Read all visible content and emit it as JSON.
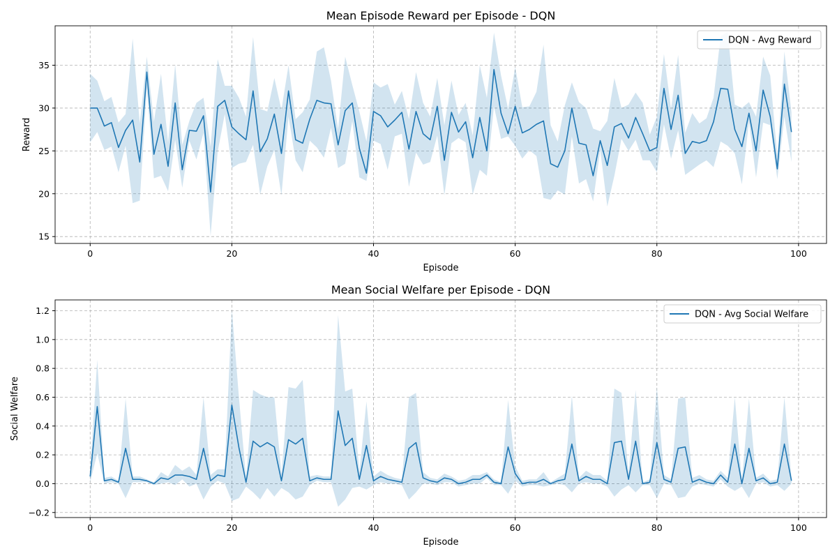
{
  "chart_data": [
    {
      "type": "line",
      "title": "Mean Episode Reward per Episode - DQN",
      "xlabel": "Episode",
      "ylabel": "Reward",
      "xlim": [
        -4.95,
        103.95
      ],
      "ylim": [
        14.2,
        39.6
      ],
      "xticks": [
        0,
        20,
        40,
        60,
        80,
        100
      ],
      "yticks": [
        15,
        20,
        25,
        30,
        35
      ],
      "xtick_labels": [
        "0",
        "20",
        "40",
        "60",
        "80",
        "100"
      ],
      "ytick_labels": [
        "15",
        "20",
        "25",
        "30",
        "35"
      ],
      "grid": true,
      "legend_position": "upper right",
      "line_color": "#1f77b4",
      "band_color": "#1f77b4",
      "series": [
        {
          "name": "DQN - Avg Reward",
          "x": [
            0,
            1,
            2,
            3,
            4,
            5,
            6,
            7,
            8,
            9,
            10,
            11,
            12,
            13,
            14,
            15,
            16,
            17,
            18,
            19,
            20,
            21,
            22,
            23,
            24,
            25,
            26,
            27,
            28,
            29,
            30,
            31,
            32,
            33,
            34,
            35,
            36,
            37,
            38,
            39,
            40,
            41,
            42,
            43,
            44,
            45,
            46,
            47,
            48,
            49,
            50,
            51,
            52,
            53,
            54,
            55,
            56,
            57,
            58,
            59,
            60,
            61,
            62,
            63,
            64,
            65,
            66,
            67,
            68,
            69,
            70,
            71,
            72,
            73,
            74,
            75,
            76,
            77,
            78,
            79,
            80,
            81,
            82,
            83,
            84,
            85,
            86,
            87,
            88,
            89,
            90,
            91,
            92,
            93,
            94,
            95,
            96,
            97,
            98,
            99
          ],
          "values": [
            30.0,
            30.0,
            27.9,
            28.3,
            25.4,
            27.4,
            28.6,
            23.7,
            34.2,
            24.6,
            28.1,
            23.2,
            30.6,
            22.8,
            27.4,
            27.3,
            29.1,
            20.2,
            30.2,
            30.9,
            27.8,
            27.0,
            26.3,
            32.0,
            24.9,
            26.4,
            29.3,
            24.7,
            32.0,
            26.3,
            25.9,
            28.7,
            30.9,
            30.6,
            30.5,
            25.7,
            29.7,
            30.6,
            25.3,
            22.4,
            29.6,
            29.1,
            27.8,
            28.6,
            29.5,
            25.2,
            29.6,
            27.0,
            26.3,
            30.2,
            23.9,
            29.5,
            27.2,
            28.4,
            24.2,
            28.9,
            25.0,
            34.5,
            29.4,
            27.0,
            30.2,
            27.1,
            27.5,
            28.1,
            28.5,
            23.5,
            23.1,
            25.0,
            30.0,
            25.9,
            25.7,
            22.1,
            26.2,
            23.3,
            27.8,
            28.2,
            26.5,
            28.9,
            27.0,
            25.0,
            25.4,
            32.3,
            27.5,
            31.5,
            24.7,
            26.1,
            25.9,
            26.2,
            28.4,
            32.3,
            32.2,
            27.5,
            25.5,
            29.4,
            25.0,
            32.1,
            29.0,
            22.9,
            32.8,
            27.2
          ],
          "upper": [
            34.0,
            33.2,
            30.8,
            31.3,
            28.3,
            29.3,
            38.1,
            28.2,
            36.0,
            28.4,
            34.0,
            26.0,
            35.1,
            25.7,
            28.5,
            30.6,
            31.2,
            25.5,
            35.7,
            32.6,
            32.6,
            31.2,
            29.0,
            38.3,
            29.9,
            29.6,
            33.5,
            29.8,
            35.0,
            28.7,
            29.5,
            31.0,
            36.6,
            37.1,
            33.2,
            27.5,
            36.0,
            32.7,
            29.6,
            26.1,
            33.0,
            32.4,
            32.8,
            30.4,
            32.0,
            28.7,
            34.2,
            30.6,
            29.0,
            33.5,
            28.0,
            33.2,
            29.2,
            30.6,
            26.8,
            35.0,
            31.2,
            38.8,
            33.8,
            29.9,
            34.8,
            30.1,
            30.2,
            31.9,
            37.4,
            28.0,
            26.1,
            30.3,
            33.0,
            30.7,
            30.0,
            27.6,
            27.3,
            28.5,
            33.5,
            30.0,
            30.4,
            31.8,
            30.6,
            26.9,
            29.0,
            36.3,
            29.9,
            36.2,
            27.1,
            29.4,
            28.2,
            28.8,
            31.2,
            38.4,
            38.9,
            30.4,
            30.0,
            30.7,
            29.0,
            36.0,
            33.8,
            24.4,
            36.6,
            29.5
          ],
          "lower": [
            26.0,
            27.2,
            25.1,
            25.5,
            22.5,
            25.6,
            18.9,
            19.2,
            32.3,
            21.8,
            22.1,
            20.3,
            26.3,
            20.7,
            26.2,
            24.0,
            27.1,
            15.1,
            24.9,
            29.3,
            23.0,
            23.5,
            23.7,
            25.7,
            19.9,
            23.2,
            25.1,
            19.8,
            29.0,
            23.9,
            22.5,
            26.2,
            25.4,
            24.2,
            27.7,
            23.0,
            23.5,
            28.5,
            21.9,
            21.5,
            26.2,
            25.8,
            22.8,
            26.7,
            27.0,
            20.8,
            24.8,
            23.4,
            23.7,
            26.8,
            19.8,
            25.9,
            26.5,
            26.0,
            19.9,
            22.8,
            22.1,
            30.2,
            26.4,
            26.7,
            25.6,
            24.1,
            25.1,
            24.4,
            19.5,
            19.3,
            20.4,
            19.9,
            26.7,
            21.2,
            21.7,
            19.1,
            25.1,
            18.5,
            22.1,
            26.4,
            25.0,
            26.3,
            23.9,
            23.9,
            22.5,
            28.1,
            24.1,
            27.4,
            22.2,
            22.8,
            23.4,
            23.9,
            23.1,
            26.1,
            25.6,
            24.7,
            21.1,
            28.4,
            21.9,
            28.3,
            28.0,
            21.7,
            29.0,
            23.7
          ]
        }
      ]
    },
    {
      "type": "line",
      "title": "Mean Social Welfare per Episode - DQN",
      "xlabel": "Episode",
      "ylabel": "Social Welfare",
      "xlim": [
        -4.95,
        103.95
      ],
      "ylim": [
        -0.235,
        1.275
      ],
      "xticks": [
        0,
        20,
        40,
        60,
        80,
        100
      ],
      "yticks": [
        -0.2,
        0.0,
        0.2,
        0.4,
        0.6,
        0.8,
        1.0,
        1.2
      ],
      "xtick_labels": [
        "0",
        "20",
        "40",
        "60",
        "80",
        "100"
      ],
      "ytick_labels": [
        "−0.2",
        "0.0",
        "0.2",
        "0.4",
        "0.6",
        "0.8",
        "1.0",
        "1.2"
      ],
      "grid": true,
      "legend_position": "upper right",
      "line_color": "#1f77b4",
      "band_color": "#1f77b4",
      "series": [
        {
          "name": "DQN - Avg Social Welfare",
          "x": [
            0,
            1,
            2,
            3,
            4,
            5,
            6,
            7,
            8,
            9,
            10,
            11,
            12,
            13,
            14,
            15,
            16,
            17,
            18,
            19,
            20,
            21,
            22,
            23,
            24,
            25,
            26,
            27,
            28,
            29,
            30,
            31,
            32,
            33,
            34,
            35,
            36,
            37,
            38,
            39,
            40,
            41,
            42,
            43,
            44,
            45,
            46,
            47,
            48,
            49,
            50,
            51,
            52,
            53,
            54,
            55,
            56,
            57,
            58,
            59,
            60,
            61,
            62,
            63,
            64,
            65,
            66,
            67,
            68,
            69,
            70,
            71,
            72,
            73,
            74,
            75,
            76,
            77,
            78,
            79,
            80,
            81,
            82,
            83,
            84,
            85,
            86,
            87,
            88,
            89,
            90,
            91,
            92,
            93,
            94,
            95,
            96,
            97,
            98,
            99
          ],
          "values": [
            0.05,
            0.535,
            0.02,
            0.03,
            0.01,
            0.245,
            0.03,
            0.03,
            0.02,
            0.0,
            0.04,
            0.03,
            0.06,
            0.06,
            0.05,
            0.03,
            0.245,
            0.02,
            0.06,
            0.05,
            0.545,
            0.25,
            0.01,
            0.295,
            0.255,
            0.285,
            0.255,
            0.02,
            0.305,
            0.275,
            0.315,
            0.02,
            0.04,
            0.03,
            0.03,
            0.505,
            0.265,
            0.315,
            0.03,
            0.265,
            0.02,
            0.05,
            0.03,
            0.02,
            0.01,
            0.245,
            0.285,
            0.04,
            0.02,
            0.01,
            0.04,
            0.03,
            0.0,
            0.01,
            0.03,
            0.03,
            0.06,
            0.01,
            0.0,
            0.255,
            0.07,
            0.0,
            0.01,
            0.01,
            0.03,
            0.0,
            0.02,
            0.03,
            0.275,
            0.02,
            0.05,
            0.03,
            0.03,
            0.0,
            0.285,
            0.295,
            0.03,
            0.295,
            0.0,
            0.01,
            0.285,
            0.03,
            0.01,
            0.245,
            0.255,
            0.01,
            0.03,
            0.01,
            0.0,
            0.06,
            0.01,
            0.275,
            0.0,
            0.245,
            0.02,
            0.04,
            0.0,
            0.01,
            0.275,
            0.02
          ],
          "upper": [
            0.09,
            0.86,
            0.04,
            0.05,
            0.02,
            0.59,
            0.05,
            0.05,
            0.03,
            0.01,
            0.08,
            0.05,
            0.13,
            0.09,
            0.12,
            0.06,
            0.6,
            0.06,
            0.1,
            0.1,
            1.21,
            0.6,
            0.04,
            0.65,
            0.62,
            0.6,
            0.6,
            0.07,
            0.67,
            0.66,
            0.72,
            0.05,
            0.06,
            0.05,
            0.05,
            1.17,
            0.64,
            0.66,
            0.08,
            0.57,
            0.05,
            0.09,
            0.06,
            0.04,
            0.03,
            0.6,
            0.63,
            0.08,
            0.04,
            0.03,
            0.07,
            0.05,
            0.02,
            0.03,
            0.06,
            0.06,
            0.08,
            0.03,
            0.01,
            0.58,
            0.12,
            0.02,
            0.03,
            0.03,
            0.08,
            0.01,
            0.04,
            0.07,
            0.61,
            0.04,
            0.09,
            0.06,
            0.06,
            0.02,
            0.66,
            0.63,
            0.07,
            0.65,
            0.01,
            0.03,
            0.67,
            0.06,
            0.03,
            0.59,
            0.6,
            0.04,
            0.06,
            0.03,
            0.02,
            0.09,
            0.04,
            0.6,
            0.02,
            0.59,
            0.04,
            0.07,
            0.02,
            0.03,
            0.6,
            0.04
          ],
          "lower": [
            0.01,
            0.21,
            0.0,
            0.01,
            0.0,
            -0.1,
            0.01,
            0.01,
            0.01,
            -0.01,
            0.0,
            0.01,
            -0.01,
            0.03,
            -0.02,
            0.0,
            -0.11,
            -0.02,
            0.02,
            0.0,
            -0.12,
            -0.1,
            -0.02,
            -0.06,
            -0.11,
            -0.03,
            -0.09,
            -0.03,
            -0.06,
            -0.11,
            -0.09,
            -0.01,
            0.02,
            0.01,
            0.01,
            -0.16,
            -0.11,
            -0.03,
            -0.02,
            -0.04,
            -0.01,
            0.01,
            0.0,
            0.0,
            -0.01,
            -0.11,
            -0.06,
            0.0,
            0.0,
            -0.01,
            0.01,
            0.01,
            -0.02,
            -0.01,
            0.0,
            0.0,
            0.04,
            -0.01,
            -0.01,
            -0.07,
            0.02,
            -0.02,
            -0.01,
            -0.01,
            -0.02,
            -0.01,
            0.0,
            -0.01,
            -0.06,
            0.0,
            0.01,
            0.0,
            0.0,
            -0.02,
            -0.09,
            -0.04,
            -0.01,
            -0.06,
            -0.01,
            -0.01,
            -0.1,
            0.0,
            -0.01,
            -0.1,
            -0.09,
            -0.02,
            0.0,
            -0.01,
            -0.02,
            0.03,
            -0.02,
            -0.05,
            -0.02,
            -0.1,
            0.0,
            0.01,
            -0.02,
            -0.01,
            -0.05,
            0.0
          ]
        }
      ]
    }
  ]
}
